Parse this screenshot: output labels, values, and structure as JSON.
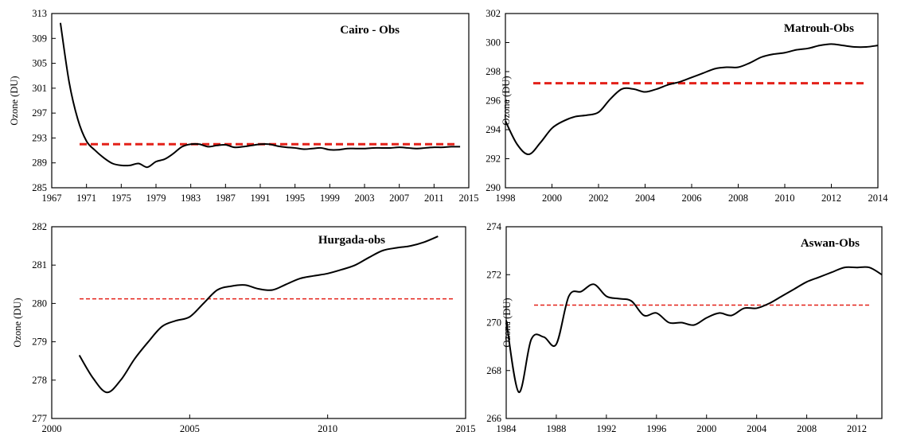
{
  "chart_data": [
    {
      "type": "line",
      "title": "Cairo - Obs",
      "ylabel": "Ozone (DU)",
      "xlim": [
        1967,
        2015
      ],
      "ylim": [
        285,
        313
      ],
      "xticks": [
        1967,
        1971,
        1975,
        1979,
        1983,
        1987,
        1991,
        1995,
        1999,
        2003,
        2007,
        2011,
        2015
      ],
      "yticks": [
        285,
        289,
        293,
        297,
        301,
        305,
        309,
        313
      ],
      "mean_line": {
        "value": 292,
        "color": "#e32119",
        "style": "dashed"
      },
      "series": [
        {
          "color": "#000000",
          "x": [
            1968,
            1969,
            1970,
            1971,
            1972,
            1973,
            1974,
            1975,
            1976,
            1977,
            1978,
            1979,
            1980,
            1981,
            1982,
            1983,
            1984,
            1985,
            1986,
            1987,
            1988,
            1989,
            1990,
            1991,
            1992,
            1993,
            1994,
            1995,
            1996,
            1997,
            1998,
            1999,
            2000,
            2001,
            2002,
            2003,
            2004,
            2005,
            2006,
            2007,
            2008,
            2009,
            2010,
            2011,
            2012,
            2013,
            2014
          ],
          "values": [
            311.5,
            302,
            296,
            292.5,
            291,
            289.8,
            288.9,
            288.6,
            288.6,
            288.9,
            288.3,
            289.2,
            289.6,
            290.5,
            291.6,
            292,
            292,
            291.6,
            291.8,
            291.9,
            291.5,
            291.6,
            291.8,
            292,
            292,
            291.7,
            291.5,
            291.4,
            291.2,
            291.3,
            291.4,
            291.1,
            291.1,
            291.3,
            291.3,
            291.3,
            291.4,
            291.4,
            291.4,
            291.5,
            291.4,
            291.3,
            291.4,
            291.5,
            291.5,
            291.6,
            291.6
          ]
        }
      ]
    },
    {
      "type": "line",
      "title": "Matrouh-Obs",
      "ylabel": "Ozone (DU)",
      "xlim": [
        1998,
        2014
      ],
      "ylim": [
        290,
        302
      ],
      "xticks": [
        1998,
        2000,
        2002,
        2004,
        2006,
        2008,
        2010,
        2012,
        2014
      ],
      "yticks": [
        290,
        292,
        294,
        296,
        298,
        300,
        302
      ],
      "mean_line": {
        "value": 297.2,
        "color": "#e32119",
        "style": "dashed"
      },
      "series": [
        {
          "color": "#000000",
          "x": [
            1998,
            1998.5,
            1999,
            1999.5,
            2000,
            2000.5,
            2001,
            2001.5,
            2002,
            2002.5,
            2003,
            2003.5,
            2004,
            2004.5,
            2005,
            2005.5,
            2006,
            2006.5,
            2007,
            2007.5,
            2008,
            2008.5,
            2009,
            2009.5,
            2010,
            2010.5,
            2011,
            2011.5,
            2012,
            2012.5,
            2013,
            2013.5,
            2014
          ],
          "values": [
            294.6,
            293,
            292.3,
            293.1,
            294.1,
            294.6,
            294.9,
            295,
            295.2,
            296.1,
            296.8,
            296.8,
            296.6,
            296.8,
            297.1,
            297.3,
            297.6,
            297.9,
            298.2,
            298.3,
            298.3,
            298.6,
            299,
            299.2,
            299.3,
            299.5,
            299.6,
            299.8,
            299.9,
            299.8,
            299.7,
            299.7,
            299.8
          ]
        }
      ]
    },
    {
      "type": "line",
      "title": "Hurgada-obs",
      "ylabel": "Ozone (DU)",
      "xlim": [
        2000,
        2015
      ],
      "ylim": [
        277,
        282
      ],
      "xticks": [
        2000,
        2005,
        2010,
        2015
      ],
      "yticks": [
        277,
        278,
        279,
        280,
        281,
        282
      ],
      "mean_line": {
        "value": 280.12,
        "color": "#e32119",
        "style": "dashed"
      },
      "series": [
        {
          "color": "#000000",
          "x": [
            2001,
            2001.5,
            2002,
            2002.5,
            2003,
            2003.5,
            2004,
            2004.5,
            2005,
            2005.5,
            2006,
            2006.5,
            2007,
            2007.5,
            2008,
            2008.5,
            2009,
            2009.5,
            2010,
            2010.5,
            2011,
            2011.5,
            2012,
            2012.5,
            2013,
            2013.5,
            2014
          ],
          "values": [
            278.65,
            278.05,
            277.68,
            278.0,
            278.55,
            279.0,
            279.4,
            279.55,
            279.65,
            280.0,
            280.35,
            280.45,
            280.48,
            280.38,
            280.35,
            280.5,
            280.65,
            280.72,
            280.78,
            280.88,
            281.0,
            281.2,
            281.38,
            281.45,
            281.5,
            281.6,
            281.75
          ]
        }
      ]
    },
    {
      "type": "line",
      "title": "Aswan-Obs",
      "ylabel": "Ozone (DU)",
      "xlim": [
        1984,
        2014
      ],
      "ylim": [
        266,
        274
      ],
      "xticks": [
        1984,
        1988,
        1992,
        1996,
        2000,
        2004,
        2008,
        2012
      ],
      "yticks": [
        266,
        268,
        270,
        272,
        274
      ],
      "mean_line": {
        "value": 270.73,
        "color": "#e32119",
        "style": "dashed"
      },
      "series": [
        {
          "color": "#000000",
          "x": [
            1984,
            1985,
            1986,
            1987,
            1988,
            1989,
            1990,
            1991,
            1992,
            1993,
            1994,
            1995,
            1996,
            1997,
            1998,
            1999,
            2000,
            2001,
            2002,
            2003,
            2004,
            2005,
            2006,
            2007,
            2008,
            2009,
            2010,
            2011,
            2012,
            2013,
            2014
          ],
          "values": [
            270.1,
            267.1,
            269.3,
            269.4,
            269.1,
            271.1,
            271.3,
            271.6,
            271.1,
            271.0,
            270.9,
            270.3,
            270.4,
            270.0,
            270.0,
            269.9,
            270.2,
            270.4,
            270.3,
            270.6,
            270.6,
            270.8,
            271.1,
            271.4,
            271.7,
            271.9,
            272.1,
            272.3,
            272.3,
            272.3,
            272.0
          ]
        }
      ]
    }
  ]
}
